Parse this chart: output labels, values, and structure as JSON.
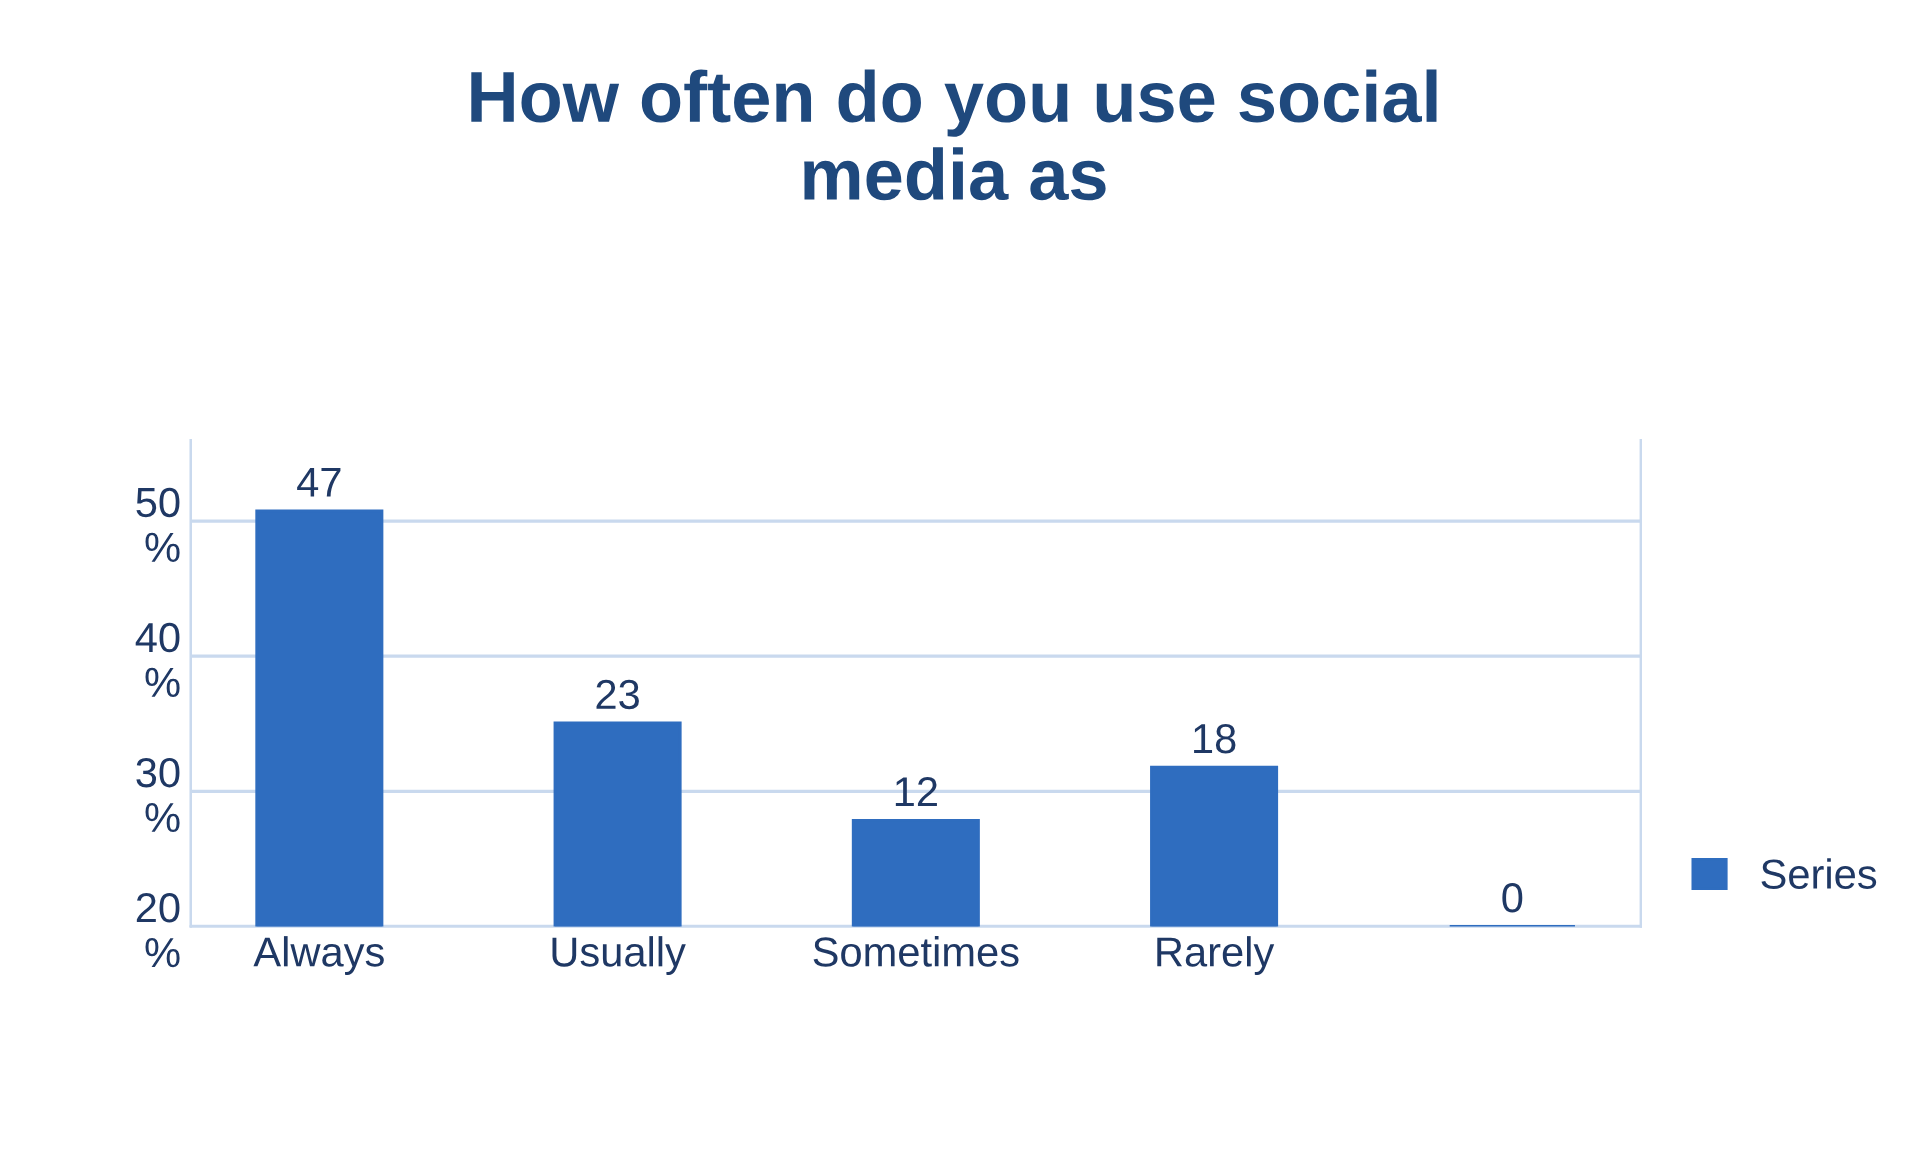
{
  "chart_data": {
    "type": "bar",
    "title": "How often do you use social\nmedia as",
    "categories": [
      "Always",
      "Usually",
      "Sometimes",
      "Rarely",
      null
    ],
    "series": [
      {
        "name": "Series",
        "color": "#2f6dbf",
        "values": [
          47,
          23,
          12,
          18,
          0
        ],
        "axis": "y2"
      }
    ],
    "ylim": [
      20,
      56
    ],
    "yticks": [
      {
        "value": 20,
        "label": "20\n%"
      },
      {
        "value": 30,
        "label": "30\n%"
      },
      {
        "value": 40,
        "label": "40\n%"
      },
      {
        "value": 50,
        "label": "50\n%"
      }
    ],
    "y2lim": [
      0,
      55
    ],
    "grid": "y",
    "data_labels": true,
    "legend": "right"
  }
}
